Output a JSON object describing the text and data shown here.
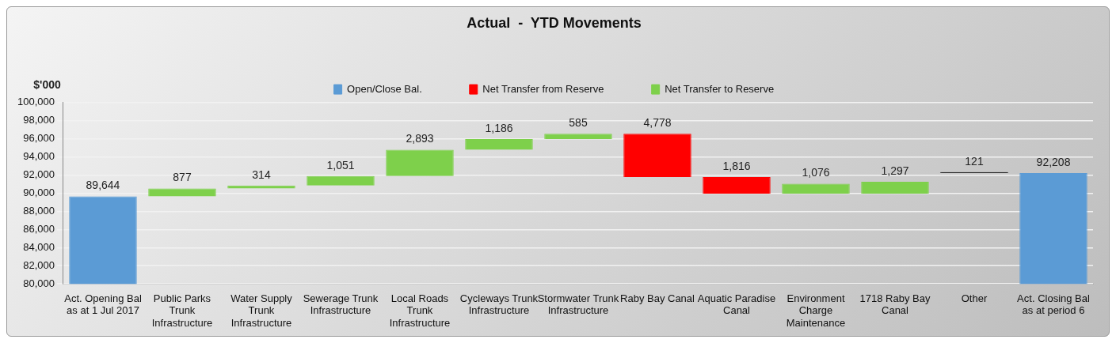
{
  "chart_data": {
    "type": "bar",
    "title": "Actual  -  YTD Movements",
    "ylabel": "$'000",
    "categories": [
      "Act. Opening Bal as at 1 Jul 2017",
      "Public Parks Trunk Infrastructure",
      "Water Supply Trunk Infrastructure",
      "Sewerage Trunk Infrastructure",
      "Local Roads Trunk Infrastructure",
      "Cycleways Trunk Infrastructure",
      "Stormwater Trunk Infrastructure",
      "Raby Bay Canal",
      "Aquatic Paradise Canal",
      "Environment Charge Maintenance",
      "1718 Raby Bay Canal",
      "Other",
      "Act. Closing Bal as at period 6"
    ],
    "series": [
      {
        "name": "Open/Close Bal.",
        "color": "#5b9bd5",
        "values": [
          89644,
          null,
          null,
          null,
          null,
          null,
          null,
          null,
          null,
          null,
          null,
          null,
          92208
        ],
        "base": [
          null,
          null,
          null,
          null,
          null,
          null,
          null,
          null,
          null,
          null,
          null,
          null,
          null
        ],
        "value_labels": [
          "89,644",
          null,
          null,
          null,
          null,
          null,
          null,
          null,
          null,
          null,
          null,
          null,
          "92,208"
        ]
      },
      {
        "name": "Net Transfer from Reserve",
        "color": "#ff0000",
        "values": [
          null,
          null,
          null,
          null,
          null,
          null,
          null,
          4778,
          1816,
          null,
          null,
          null,
          null
        ],
        "base": [
          null,
          null,
          null,
          null,
          null,
          null,
          null,
          91772,
          89956,
          null,
          null,
          null,
          null
        ],
        "value_labels": [
          null,
          null,
          null,
          null,
          null,
          null,
          null,
          "4,778",
          "1,816",
          null,
          null,
          null,
          null
        ]
      },
      {
        "name": "Net Transfer to Reserve",
        "color": "#7ed04b",
        "values": [
          null,
          877,
          314,
          1051,
          2893,
          1186,
          585,
          null,
          null,
          1076,
          1297,
          null,
          null
        ],
        "base": [
          null,
          89644,
          90521,
          90835,
          91886,
          94779,
          95965,
          null,
          null,
          89956,
          89956,
          null,
          null
        ],
        "value_labels": [
          null,
          "877",
          "314",
          "1,051",
          "2,893",
          "1,186",
          "585",
          null,
          null,
          "1,076",
          "1,297",
          null,
          null
        ]
      },
      {
        "color": "#000000",
        "values": [
          null,
          null,
          null,
          null,
          null,
          null,
          null,
          null,
          null,
          null,
          null,
          121,
          null
        ],
        "base": [
          null,
          null,
          null,
          null,
          null,
          null,
          null,
          null,
          null,
          null,
          null,
          92208,
          null
        ],
        "value_labels": [
          null,
          null,
          null,
          null,
          null,
          null,
          null,
          null,
          null,
          null,
          null,
          "121",
          null
        ]
      }
    ],
    "ylim": [
      80000,
      100000
    ],
    "yticks": [
      {
        "value": 80000,
        "label": "80,000"
      },
      {
        "value": 82000,
        "label": "82,000"
      },
      {
        "value": 84000,
        "label": "84,000"
      },
      {
        "value": 86000,
        "label": "86,000"
      },
      {
        "value": 88000,
        "label": "88,000"
      },
      {
        "value": 90000,
        "label": "90,000"
      },
      {
        "value": 92000,
        "label": "92,000"
      },
      {
        "value": 94000,
        "label": "94,000"
      },
      {
        "value": 96000,
        "label": "96,000"
      },
      {
        "value": 98000,
        "label": "98,000"
      },
      {
        "value": 100000,
        "label": "100,000"
      }
    ],
    "grid": "y",
    "legend": "top"
  }
}
